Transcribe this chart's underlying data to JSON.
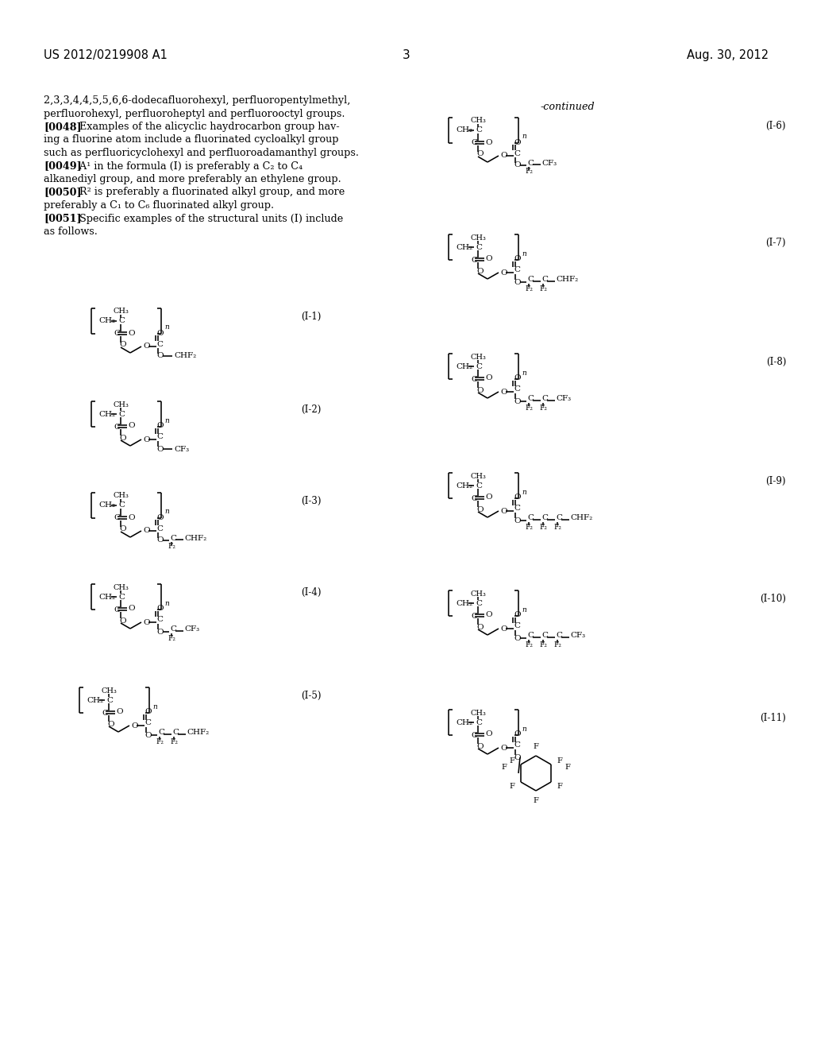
{
  "patent_number": "US 2012/0219908 A1",
  "date": "Aug. 30, 2012",
  "page_number": "3",
  "body_text_lines": [
    "2,3,3,4,4,5,5,6,6-dodecafluorohexyl, perfluoropentylmethyl,",
    "perfluorohexyl, perfluoroheptyl and perfluorooctyl groups.",
    "[0048]   Examples of the alicyclic haydrocarbon group hav-",
    "ing a fluorine atom include a fluorinated cycloalkyl group",
    "such as perfluoricyclohexyl and perfluoroadamanthyl groups.",
    "[0049]   A¹ in the formula (I) is preferably a C₂ to C₄",
    "alkanediyl group, and more preferably an ethylene group.",
    "[0050]   R² is preferably a fluorinated alkyl group, and more",
    "preferably a C₁ to C₆ fluorinated alkyl group.",
    "[0051]   Specific examples of the structural units (I) include",
    "as follows."
  ],
  "bold_tags": [
    "[0048]",
    "[0049]",
    "[0050]",
    "[0051]"
  ],
  "continued_label": "-continued",
  "left_labels": [
    "(I-1)",
    "(I-2)",
    "(I-3)",
    "(I-4)",
    "(I-5)"
  ],
  "right_labels": [
    "(I-6)",
    "(I-7)",
    "(I-8)",
    "(I-9)",
    "(I-10)",
    "(I-11)"
  ]
}
